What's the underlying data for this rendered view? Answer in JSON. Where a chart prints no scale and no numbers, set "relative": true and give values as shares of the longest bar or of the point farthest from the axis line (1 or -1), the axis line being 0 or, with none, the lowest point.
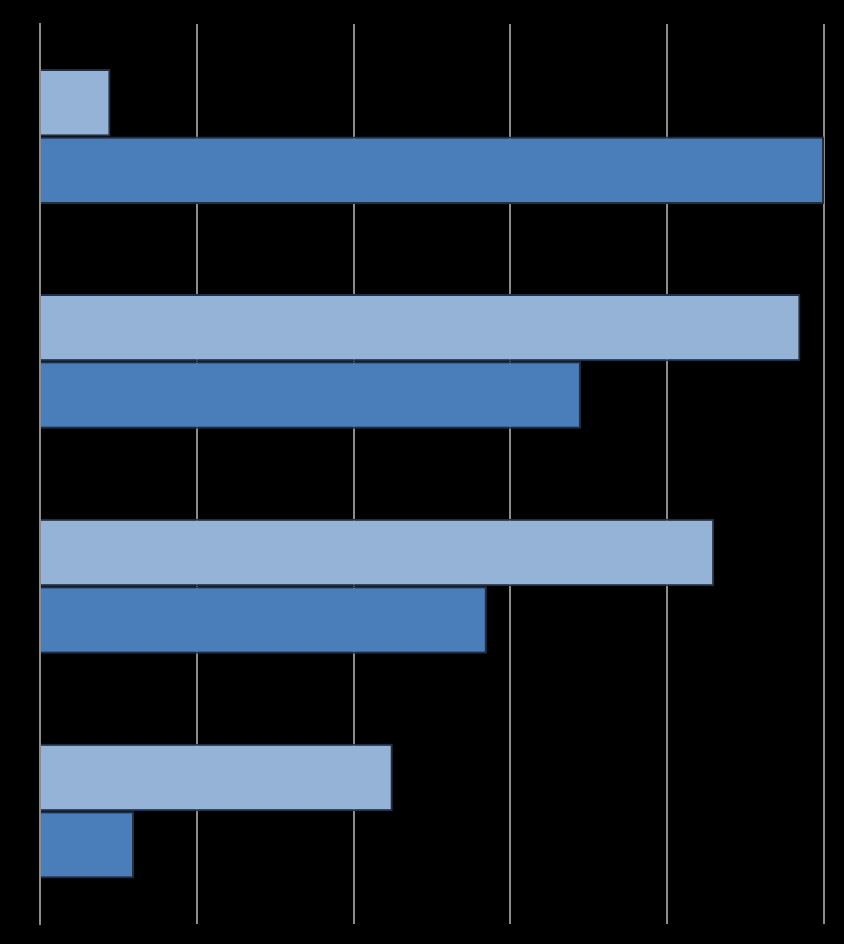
{
  "chart_data": {
    "type": "bar",
    "orientation": "horizontal",
    "relative": true,
    "grid": "x",
    "legend": false,
    "categories": [
      null,
      null,
      null,
      null
    ],
    "series": [
      {
        "color": "#95b3d7",
        "values": [
          0.09,
          0.97,
          0.86,
          0.45
        ]
      },
      {
        "color": "#4a7ebb",
        "values": [
          1,
          0.69,
          0.57,
          0.12
        ]
      }
    ]
  }
}
